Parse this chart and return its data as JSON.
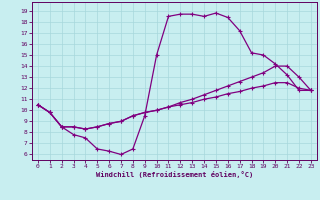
{
  "xlabel": "Windchill (Refroidissement éolien,°C)",
  "bg_color": "#c8eef0",
  "line_color": "#800080",
  "grid_color": "#a8d8dc",
  "xlim": [
    -0.5,
    23.5
  ],
  "ylim": [
    5.5,
    19.8
  ],
  "yticks": [
    6,
    7,
    8,
    9,
    10,
    11,
    12,
    13,
    14,
    15,
    16,
    17,
    18,
    19
  ],
  "xticks": [
    0,
    1,
    2,
    3,
    4,
    5,
    6,
    7,
    8,
    9,
    10,
    11,
    12,
    13,
    14,
    15,
    16,
    17,
    18,
    19,
    20,
    21,
    22,
    23
  ],
  "curve1_x": [
    0,
    1,
    2,
    3,
    4,
    5,
    6,
    7,
    8,
    9,
    10,
    11,
    12,
    13,
    14,
    15,
    16,
    17,
    18,
    19,
    20,
    21,
    22,
    23
  ],
  "curve1_y": [
    10.5,
    9.8,
    8.5,
    7.8,
    7.5,
    6.5,
    6.3,
    6.0,
    6.5,
    9.5,
    15.0,
    18.5,
    18.7,
    18.7,
    18.5,
    18.8,
    18.4,
    17.2,
    15.2,
    15.0,
    14.2,
    13.2,
    11.8,
    11.8
  ],
  "curve2_x": [
    0,
    1,
    2,
    3,
    4,
    5,
    6,
    7,
    8,
    9,
    10,
    11,
    12,
    13,
    14,
    15,
    16,
    17,
    18,
    19,
    20,
    21,
    22,
    23
  ],
  "curve2_y": [
    10.5,
    9.8,
    8.5,
    8.5,
    8.3,
    8.5,
    8.8,
    9.0,
    9.5,
    9.8,
    10.0,
    10.3,
    10.7,
    11.0,
    11.4,
    11.8,
    12.2,
    12.6,
    13.0,
    13.4,
    14.0,
    14.0,
    13.0,
    11.8
  ],
  "curve3_x": [
    0,
    1,
    2,
    3,
    4,
    5,
    6,
    7,
    8,
    9,
    10,
    11,
    12,
    13,
    14,
    15,
    16,
    17,
    18,
    19,
    20,
    21,
    22,
    23
  ],
  "curve3_y": [
    10.5,
    9.8,
    8.5,
    8.5,
    8.3,
    8.5,
    8.8,
    9.0,
    9.5,
    9.8,
    10.0,
    10.3,
    10.5,
    10.7,
    11.0,
    11.2,
    11.5,
    11.7,
    12.0,
    12.2,
    12.5,
    12.5,
    12.0,
    11.8
  ]
}
